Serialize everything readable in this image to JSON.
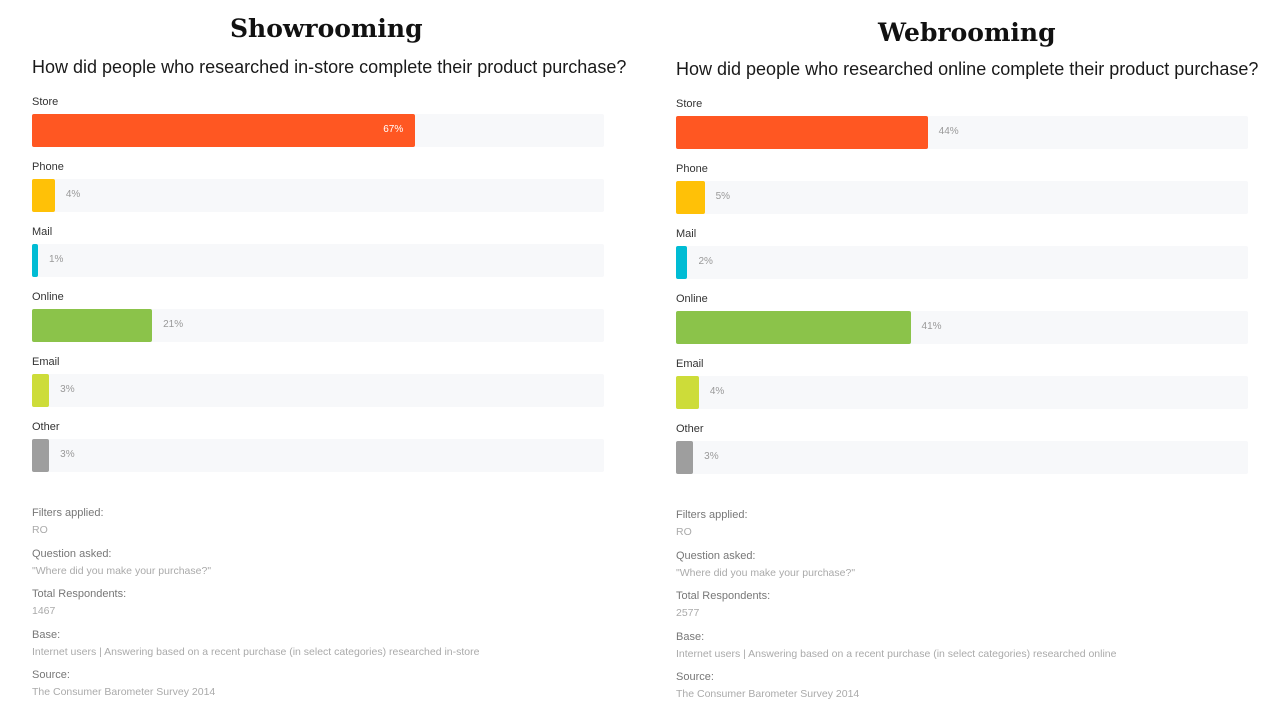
{
  "chart_data": [
    {
      "type": "bar",
      "panel_title": "Showrooming",
      "title": "How did people who researched in-store complete their product purchase?",
      "categories": [
        "Store",
        "Phone",
        "Mail",
        "Online",
        "Email",
        "Other"
      ],
      "values": [
        67,
        4,
        1,
        21,
        3,
        3
      ],
      "value_labels": [
        "67%",
        "4%",
        "1%",
        "21%",
        "3%",
        "3%"
      ],
      "colors": [
        "#ff5722",
        "#ffc107",
        "#00bcd4",
        "#8bc34a",
        "#cddc39",
        "#9e9e9e"
      ],
      "xlim": [
        0,
        100
      ],
      "orientation": "horizontal",
      "meta": [
        {
          "label": "Filters applied:",
          "value": "RO"
        },
        {
          "label": "Question asked:",
          "value": "\"Where did you make your purchase?\""
        },
        {
          "label": "Total Respondents:",
          "value": "1467"
        },
        {
          "label": "Base:",
          "value": "Internet users | Answering based on a recent purchase (in select categories) researched in-store"
        },
        {
          "label": "Source:",
          "value": "The Consumer Barometer Survey 2014"
        }
      ]
    },
    {
      "type": "bar",
      "panel_title": "Webrooming",
      "title": "How did people who researched online complete their product purchase?",
      "categories": [
        "Store",
        "Phone",
        "Mail",
        "Online",
        "Email",
        "Other"
      ],
      "values": [
        44,
        5,
        2,
        41,
        4,
        3
      ],
      "value_labels": [
        "44%",
        "5%",
        "2%",
        "41%",
        "4%",
        "3%"
      ],
      "colors": [
        "#ff5722",
        "#ffc107",
        "#00bcd4",
        "#8bc34a",
        "#cddc39",
        "#9e9e9e"
      ],
      "xlim": [
        0,
        100
      ],
      "orientation": "horizontal",
      "meta": [
        {
          "label": "Filters applied:",
          "value": "RO"
        },
        {
          "label": "Question asked:",
          "value": "\"Where did you make your purchase?\""
        },
        {
          "label": "Total Respondents:",
          "value": "2577"
        },
        {
          "label": "Base:",
          "value": "Internet users | Answering based on a recent purchase (in select categories) researched online"
        },
        {
          "label": "Source:",
          "value": "The Consumer Barometer Survey 2014"
        }
      ]
    }
  ]
}
